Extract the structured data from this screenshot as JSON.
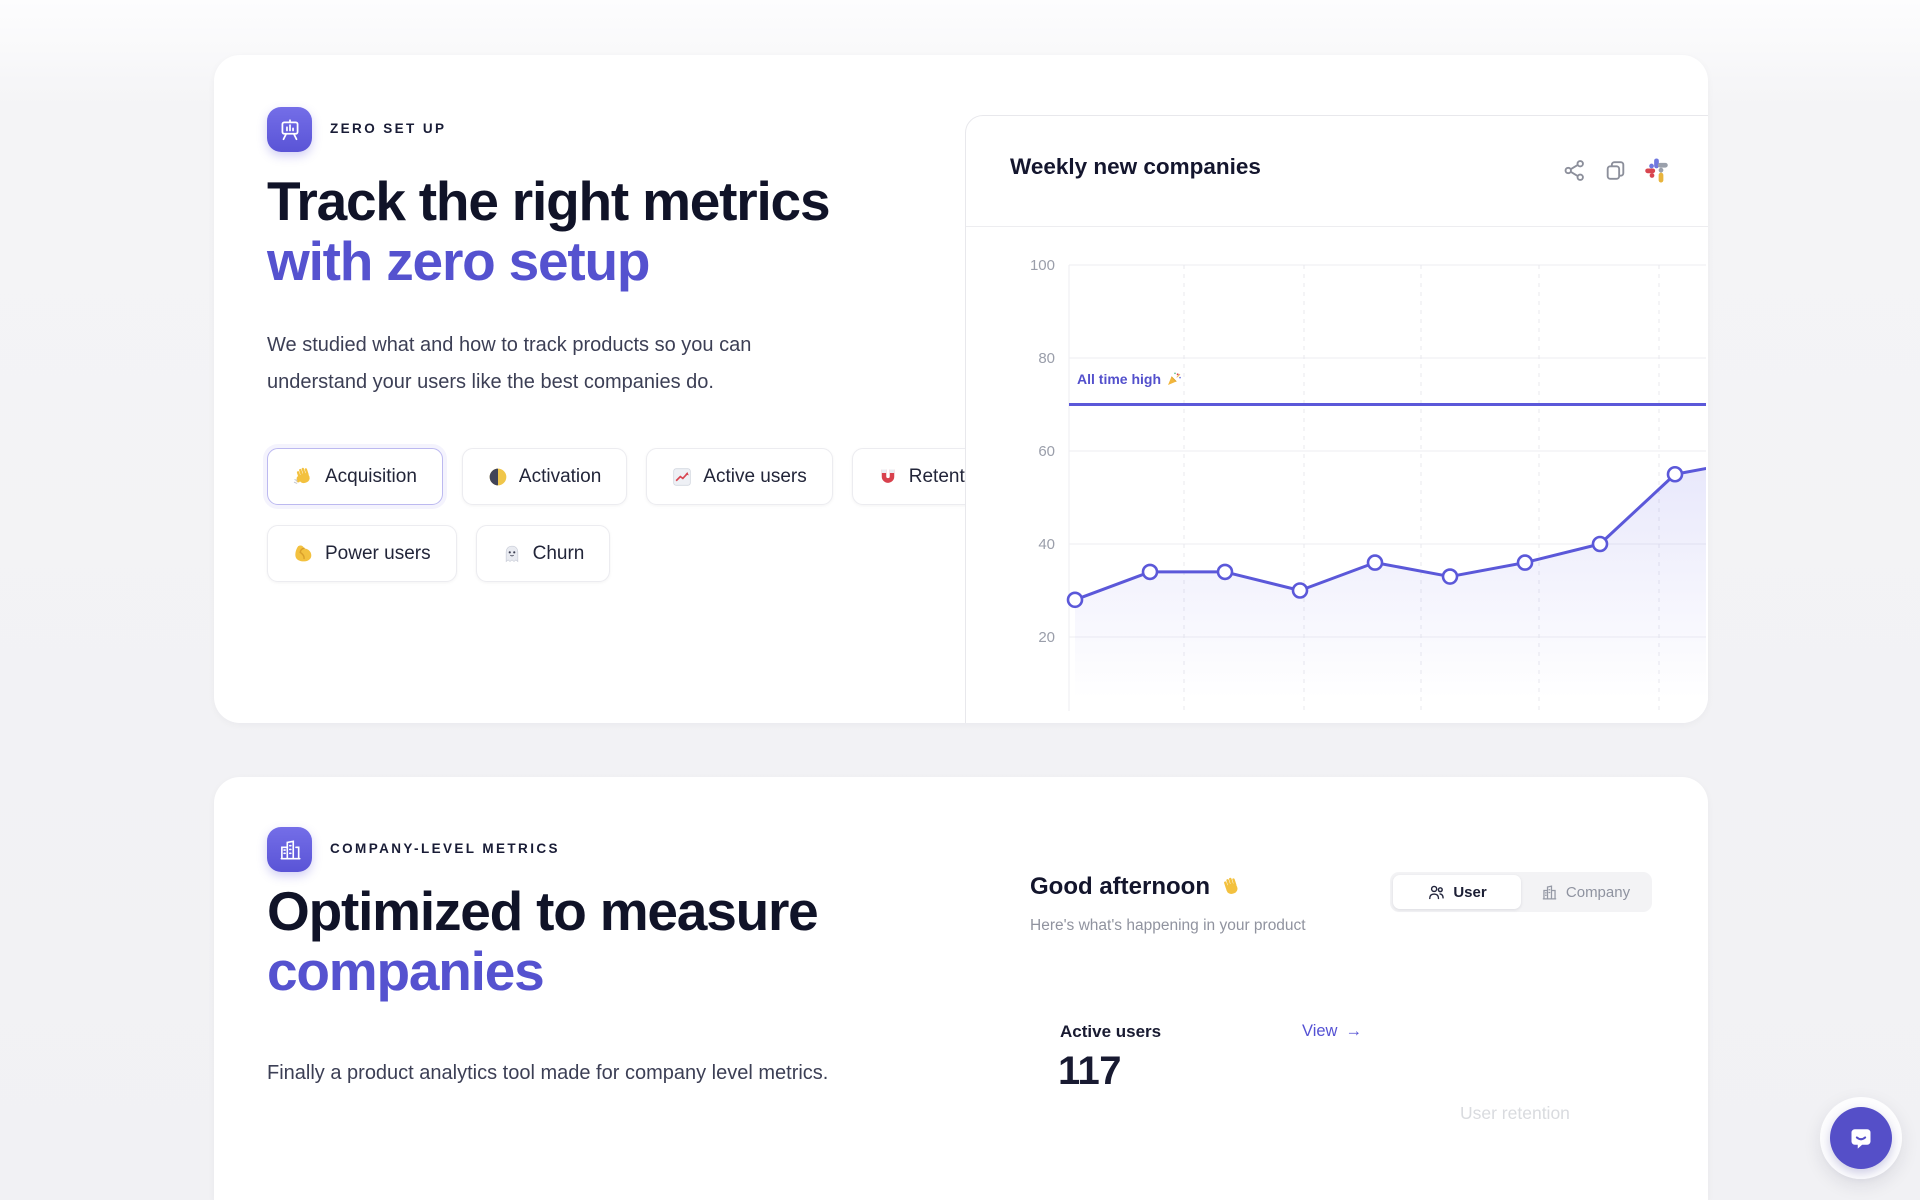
{
  "section_zero_setup": {
    "eyebrow": "ZERO SET UP",
    "heading_line1": "Track the right metrics",
    "heading_line2": "with zero setup",
    "description": "We studied what and how to track products so you can understand your users like the best companies do.",
    "tags": [
      {
        "label": "Acquisition",
        "icon": "wave-emoji",
        "active": true
      },
      {
        "label": "Activation",
        "icon": "half-moon-emoji",
        "active": false
      },
      {
        "label": "Active users",
        "icon": "chart-increasing-emoji",
        "active": false
      },
      {
        "label": "Retention",
        "icon": "magnet-emoji",
        "active": false
      },
      {
        "label": "Power users",
        "icon": "flex-biceps-emoji",
        "active": false
      },
      {
        "label": "Churn",
        "icon": "ghost-emoji",
        "active": false
      }
    ],
    "chart_card": {
      "title": "Weekly new companies",
      "actions": [
        "share-icon",
        "copy-icon",
        "slack-icon"
      ]
    }
  },
  "chart_data": {
    "type": "line",
    "title": "Weekly new companies",
    "values": [
      28,
      34,
      34,
      30,
      36,
      33,
      36,
      40,
      55,
      58
    ],
    "x_labels": [],
    "y_ticks": [
      100,
      80,
      60,
      40,
      20
    ],
    "ylim": [
      0,
      100
    ],
    "annotation": {
      "label": "All time high",
      "emoji": "party-popper",
      "value": 70
    },
    "line_color": "#5b58d9",
    "area_fill": "rgba(99,97,228,0.14)",
    "grid": "horizontal-solid vertical-dashed",
    "legend": "none"
  },
  "section_company_metrics": {
    "eyebrow": "COMPANY-LEVEL METRICS",
    "heading_line1": "Optimized to measure",
    "heading_line2": "companies",
    "description": "Finally a product analytics tool made for company level metrics.",
    "preview": {
      "greeting": "Good afternoon",
      "greeting_emoji": "wave-emoji",
      "subtext": "Here's what's happening in your product",
      "toggle": [
        {
          "label": "User",
          "icon": "users-icon",
          "active": true
        },
        {
          "label": "Company",
          "icon": "company-icon",
          "active": false
        }
      ],
      "metric_label": "Active users",
      "view_label": "View",
      "metric_value": "117",
      "faded_label": "User retention"
    }
  },
  "colors": {
    "accent": "#5552cf",
    "heading_dark": "#101328",
    "chart_line": "#5b58d9"
  }
}
